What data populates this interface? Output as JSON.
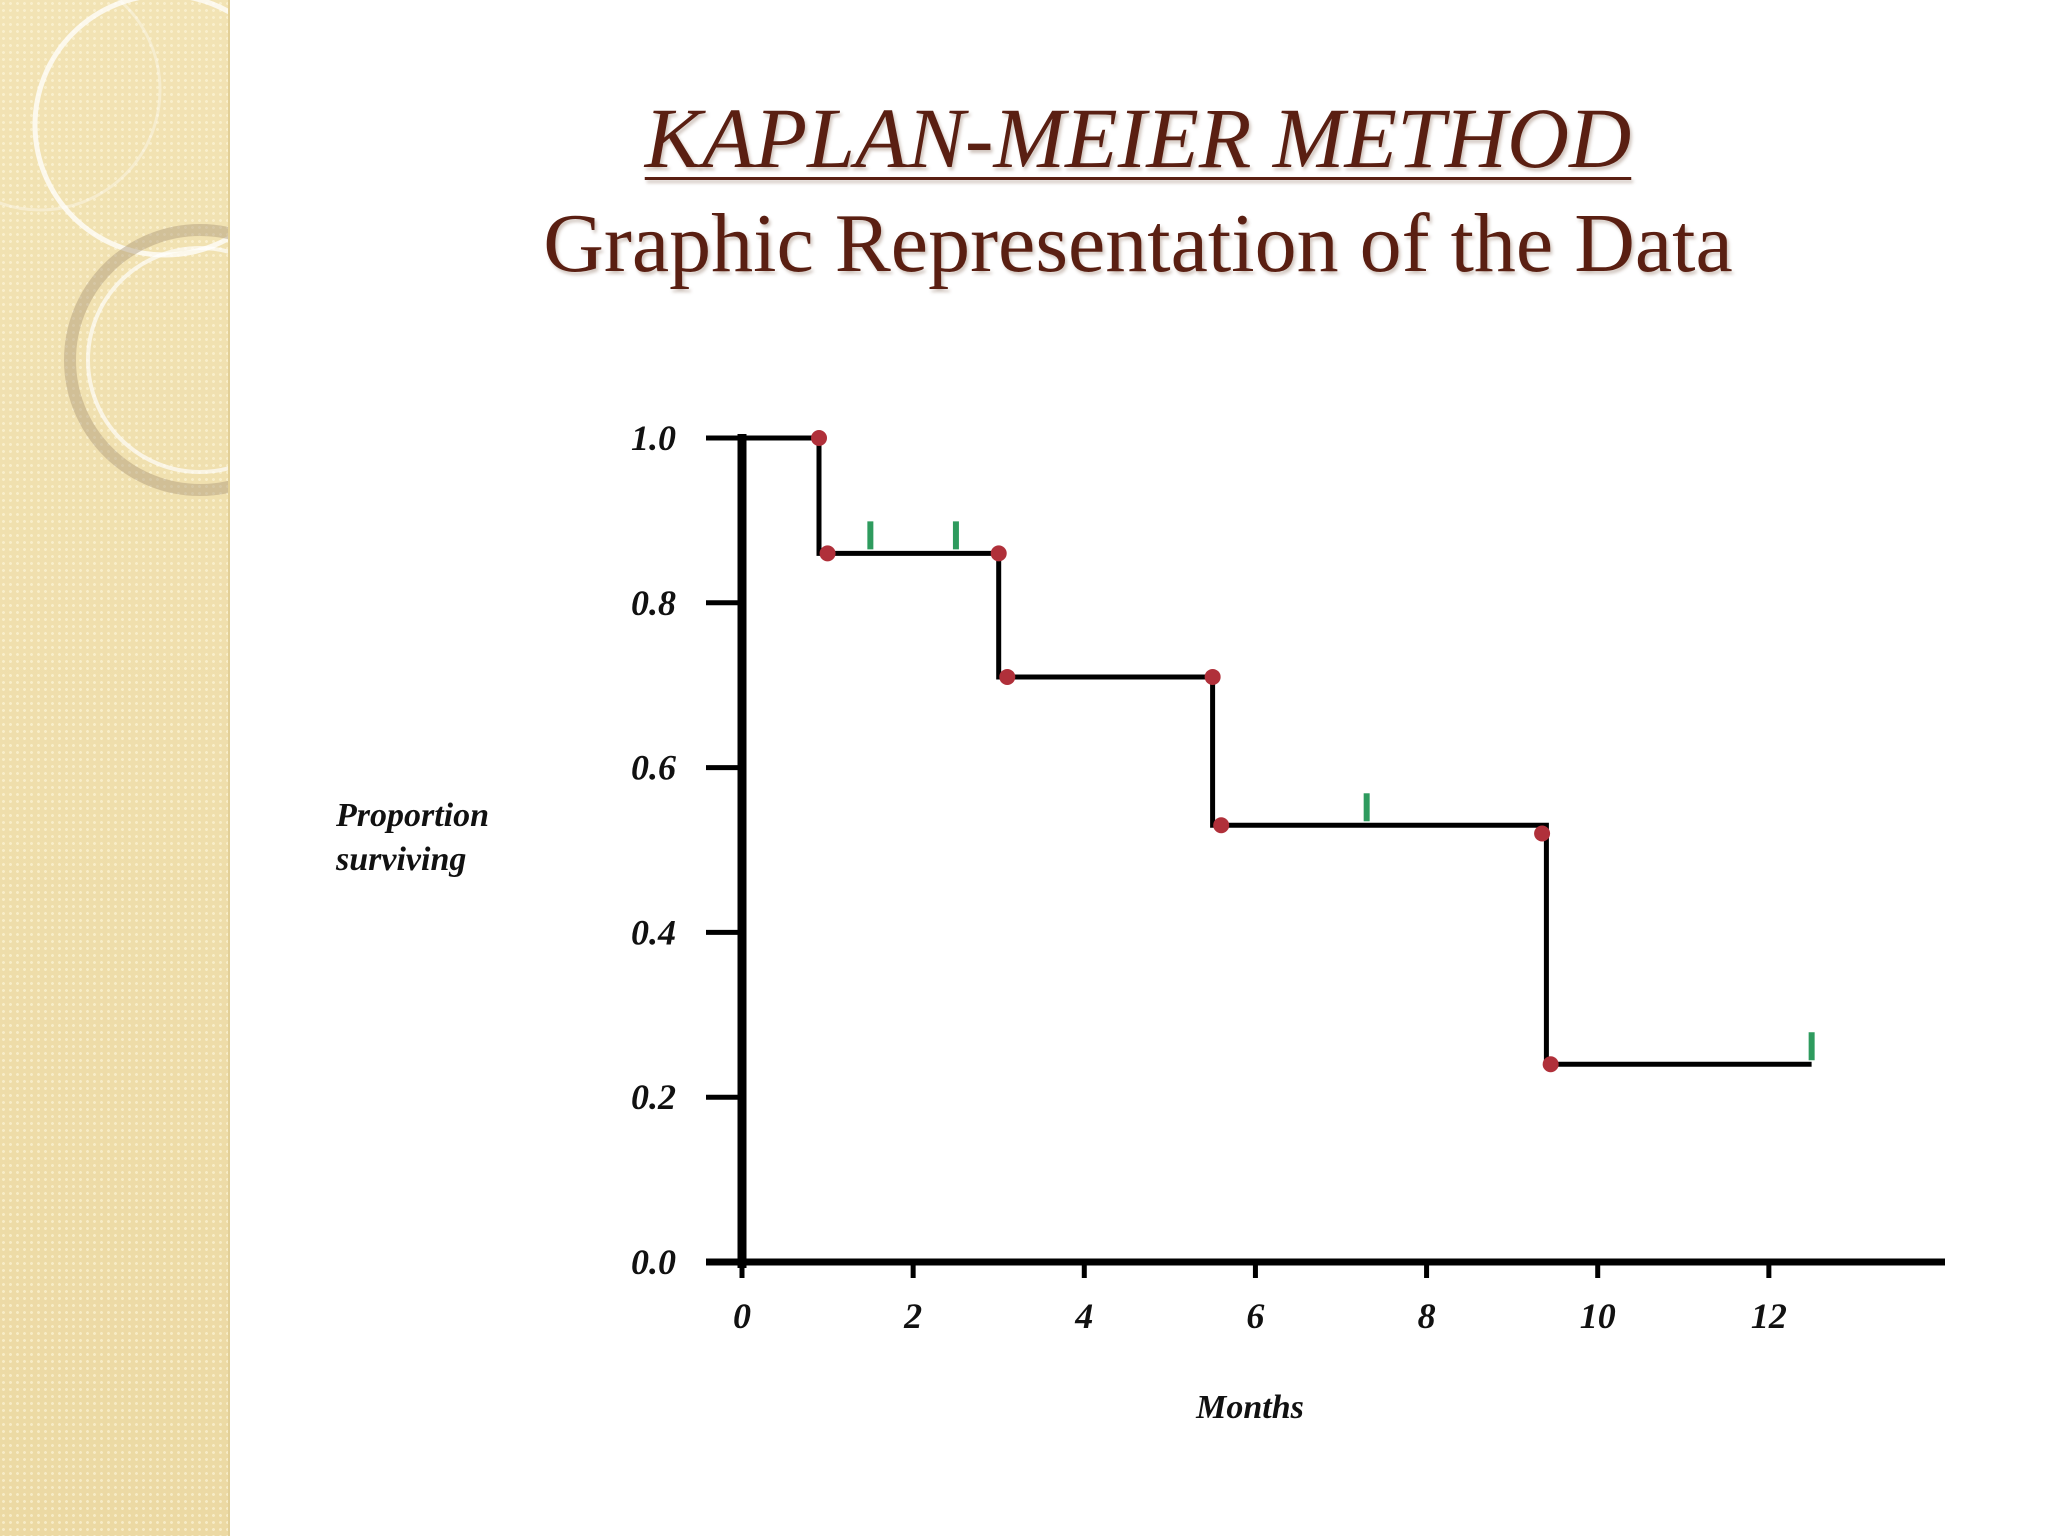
{
  "slide": {
    "title": "KAPLAN-MEIER METHOD",
    "subtitle": "Graphic Representation of the Data"
  },
  "colors": {
    "title": "#5a1f12",
    "curve": "#000000",
    "event_marker": "#b0303a",
    "censor_marker": "#2e9b5e",
    "band": "#efdfac"
  },
  "chart_data": {
    "type": "line",
    "subtype": "kaplan-meier step",
    "title": "",
    "xlabel": "Months",
    "ylabel": [
      "Proportion",
      "surviving"
    ],
    "xlim": [
      0,
      14
    ],
    "ylim": [
      0,
      1.0
    ],
    "x_ticks": [
      0,
      2,
      4,
      6,
      8,
      10,
      12
    ],
    "x_tick_labels": [
      "0",
      "2",
      "4",
      "6",
      "8",
      "10",
      "12"
    ],
    "y_ticks": [
      0,
      0.2,
      0.4,
      0.6,
      0.8,
      1.0
    ],
    "y_tick_labels": [
      "0.0",
      "0.2",
      "0.4",
      "0.6",
      "0.8",
      "1.0"
    ],
    "grid": false,
    "steps": [
      {
        "x": 0,
        "y": 1.0
      },
      {
        "x": 0.9,
        "y": 1.0
      },
      {
        "x": 0.9,
        "y": 0.86
      },
      {
        "x": 3.0,
        "y": 0.86
      },
      {
        "x": 3.0,
        "y": 0.71
      },
      {
        "x": 5.5,
        "y": 0.71
      },
      {
        "x": 5.5,
        "y": 0.53
      },
      {
        "x": 9.4,
        "y": 0.53
      },
      {
        "x": 9.4,
        "y": 0.24
      },
      {
        "x": 12.5,
        "y": 0.24
      }
    ],
    "events": [
      {
        "x": 0.9,
        "y": 1.0
      },
      {
        "x": 1.0,
        "y": 0.86
      },
      {
        "x": 3.0,
        "y": 0.86
      },
      {
        "x": 3.1,
        "y": 0.71
      },
      {
        "x": 5.5,
        "y": 0.71
      },
      {
        "x": 5.6,
        "y": 0.53
      },
      {
        "x": 9.35,
        "y": 0.52
      },
      {
        "x": 9.45,
        "y": 0.24
      }
    ],
    "censored": [
      {
        "x": 1.5,
        "y": 0.86
      },
      {
        "x": 2.5,
        "y": 0.86
      },
      {
        "x": 7.3,
        "y": 0.53
      },
      {
        "x": 12.5,
        "y": 0.24
      }
    ]
  }
}
